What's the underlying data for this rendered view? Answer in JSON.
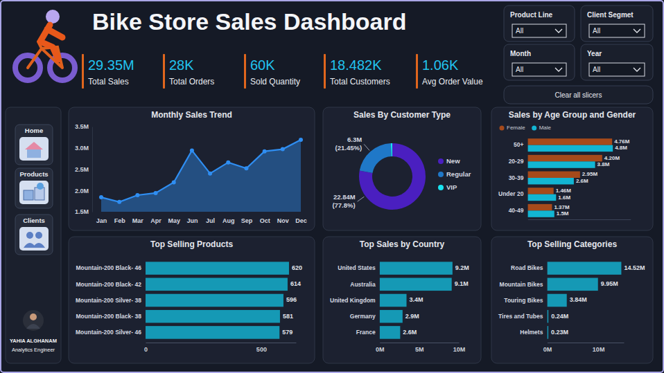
{
  "header": {
    "title": "Bike Store Sales Dashboard"
  },
  "kpis": [
    {
      "value": "29.35M",
      "label": "Total Sales"
    },
    {
      "value": "28K",
      "label": "Total Orders"
    },
    {
      "value": "60K",
      "label": "Sold Quantity"
    },
    {
      "value": "18.482K",
      "label": "Total Customers"
    },
    {
      "value": "1.06K",
      "label": "Avg Order Value"
    }
  ],
  "slicers": [
    {
      "label": "Product Line",
      "value": "All"
    },
    {
      "label": "Client Segmet",
      "value": "All"
    },
    {
      "label": "Month",
      "value": "All"
    },
    {
      "label": "Year",
      "value": "All"
    }
  ],
  "clear_button": "Clear all slicers",
  "nav": [
    "Home",
    "Products",
    "Clients"
  ],
  "author": {
    "name": "YAHIA ALGHANAM",
    "role": "Analytics Engineer"
  },
  "chart_data": [
    {
      "type": "area",
      "title": "Monthly Sales Trend",
      "categories": [
        "Jan",
        "Feb",
        "Mar",
        "Apr",
        "May",
        "Jun",
        "Jul",
        "Aug",
        "Sep",
        "Oct",
        "Nov",
        "Dec"
      ],
      "values": [
        1.84,
        1.73,
        1.89,
        1.94,
        2.19,
        2.94,
        2.4,
        2.66,
        2.52,
        2.92,
        2.97,
        3.19
      ],
      "color": "#2f8ef2",
      "marker": "circle",
      "grid": false,
      "ylim": [
        1.5,
        3.5
      ],
      "yticks": [
        {
          "value": 1.5,
          "label": "1.5M"
        },
        {
          "value": 2,
          "label": "2.0M"
        },
        {
          "value": 2.5,
          "label": "2.5M"
        },
        {
          "value": 3,
          "label": "3.0M"
        },
        {
          "value": 3.5,
          "label": "3.5M"
        }
      ]
    },
    {
      "type": "pie",
      "title": "Sales By Customer Type",
      "categories": [
        "New",
        "Regular",
        "VIP"
      ],
      "values": [
        22.84,
        6.3,
        0.21
      ],
      "value_labels": [
        "22.84M (77.8%)",
        "6.3M (21.45%)",
        null
      ],
      "colors": [
        "#4a1fc0",
        "#1f78c8",
        "#19e3f0"
      ],
      "legend": "right",
      "data_labels": true
    },
    {
      "type": "bar",
      "orientation": "horizontal",
      "title": "Sales by Age Group and Gender",
      "categories": [
        "50+",
        "20-29",
        "30-39",
        "Under 20",
        "40-49"
      ],
      "series": [
        {
          "name": "Female",
          "color": "#a64a1b",
          "values": [
            4.76,
            4.2,
            2.95,
            1.46,
            1.37
          ],
          "value_labels": [
            "4.76M",
            "4.20M",
            "2.95M",
            "1.46M",
            "1.37M"
          ]
        },
        {
          "name": "Male",
          "color": "#12b5d3",
          "values": [
            4.8,
            3.8,
            2.6,
            1.6,
            1.5
          ],
          "value_labels": [
            "4.8M",
            "3.8M",
            "2.6M",
            "1.6M",
            "1.5M"
          ]
        }
      ],
      "xlim": [
        0,
        5.8
      ],
      "legend": "top-left",
      "data_labels": true,
      "tick_labels": "y"
    },
    {
      "type": "bar",
      "orientation": "horizontal",
      "title": "Top Selling Products",
      "categories": [
        "Mountain-200 Black- 46",
        "Mountain-200 Black- 42",
        "Mountain-200 Silver- 38",
        "Mountain-200 Black- 38",
        "Mountain-200 Silver- 46"
      ],
      "values": [
        620,
        614,
        596,
        581,
        579
      ],
      "color": "#1599b5",
      "xlim": [
        0,
        650
      ],
      "xticks": [
        0,
        500
      ],
      "data_labels": true
    },
    {
      "type": "bar",
      "orientation": "horizontal",
      "title": "Top Sales by Country",
      "categories": [
        "United States",
        "Australia",
        "United Kingdom",
        "Germany",
        "France"
      ],
      "values": [
        9.2,
        9.1,
        3.4,
        2.9,
        2.6
      ],
      "value_labels": [
        "9.2M",
        "9.1M",
        "3.4M",
        "2.9M",
        "2.6M"
      ],
      "color": "#1599b5",
      "xlim": [
        0,
        10
      ],
      "xticks": [
        {
          "value": 0,
          "label": "0M"
        },
        {
          "value": 5,
          "label": "5M"
        },
        {
          "value": 10,
          "label": "10M"
        }
      ],
      "data_labels": true
    },
    {
      "type": "bar",
      "orientation": "horizontal",
      "title": "Top Selling Categories",
      "categories": [
        "Road Bikes",
        "Mountain Bikes",
        "Touring Bikes",
        "Tires and Tubes",
        "Helmets"
      ],
      "values": [
        14.52,
        9.95,
        3.84,
        0.24,
        0.23
      ],
      "value_labels": [
        "14.52M",
        "9.95M",
        "3.84M",
        "0.24M",
        "0.23M"
      ],
      "color": "#1599b5",
      "xlim": [
        0,
        15
      ],
      "xticks": [
        {
          "value": 0,
          "label": "0M"
        },
        {
          "value": 10,
          "label": "10M"
        }
      ],
      "data_labels": true
    }
  ]
}
